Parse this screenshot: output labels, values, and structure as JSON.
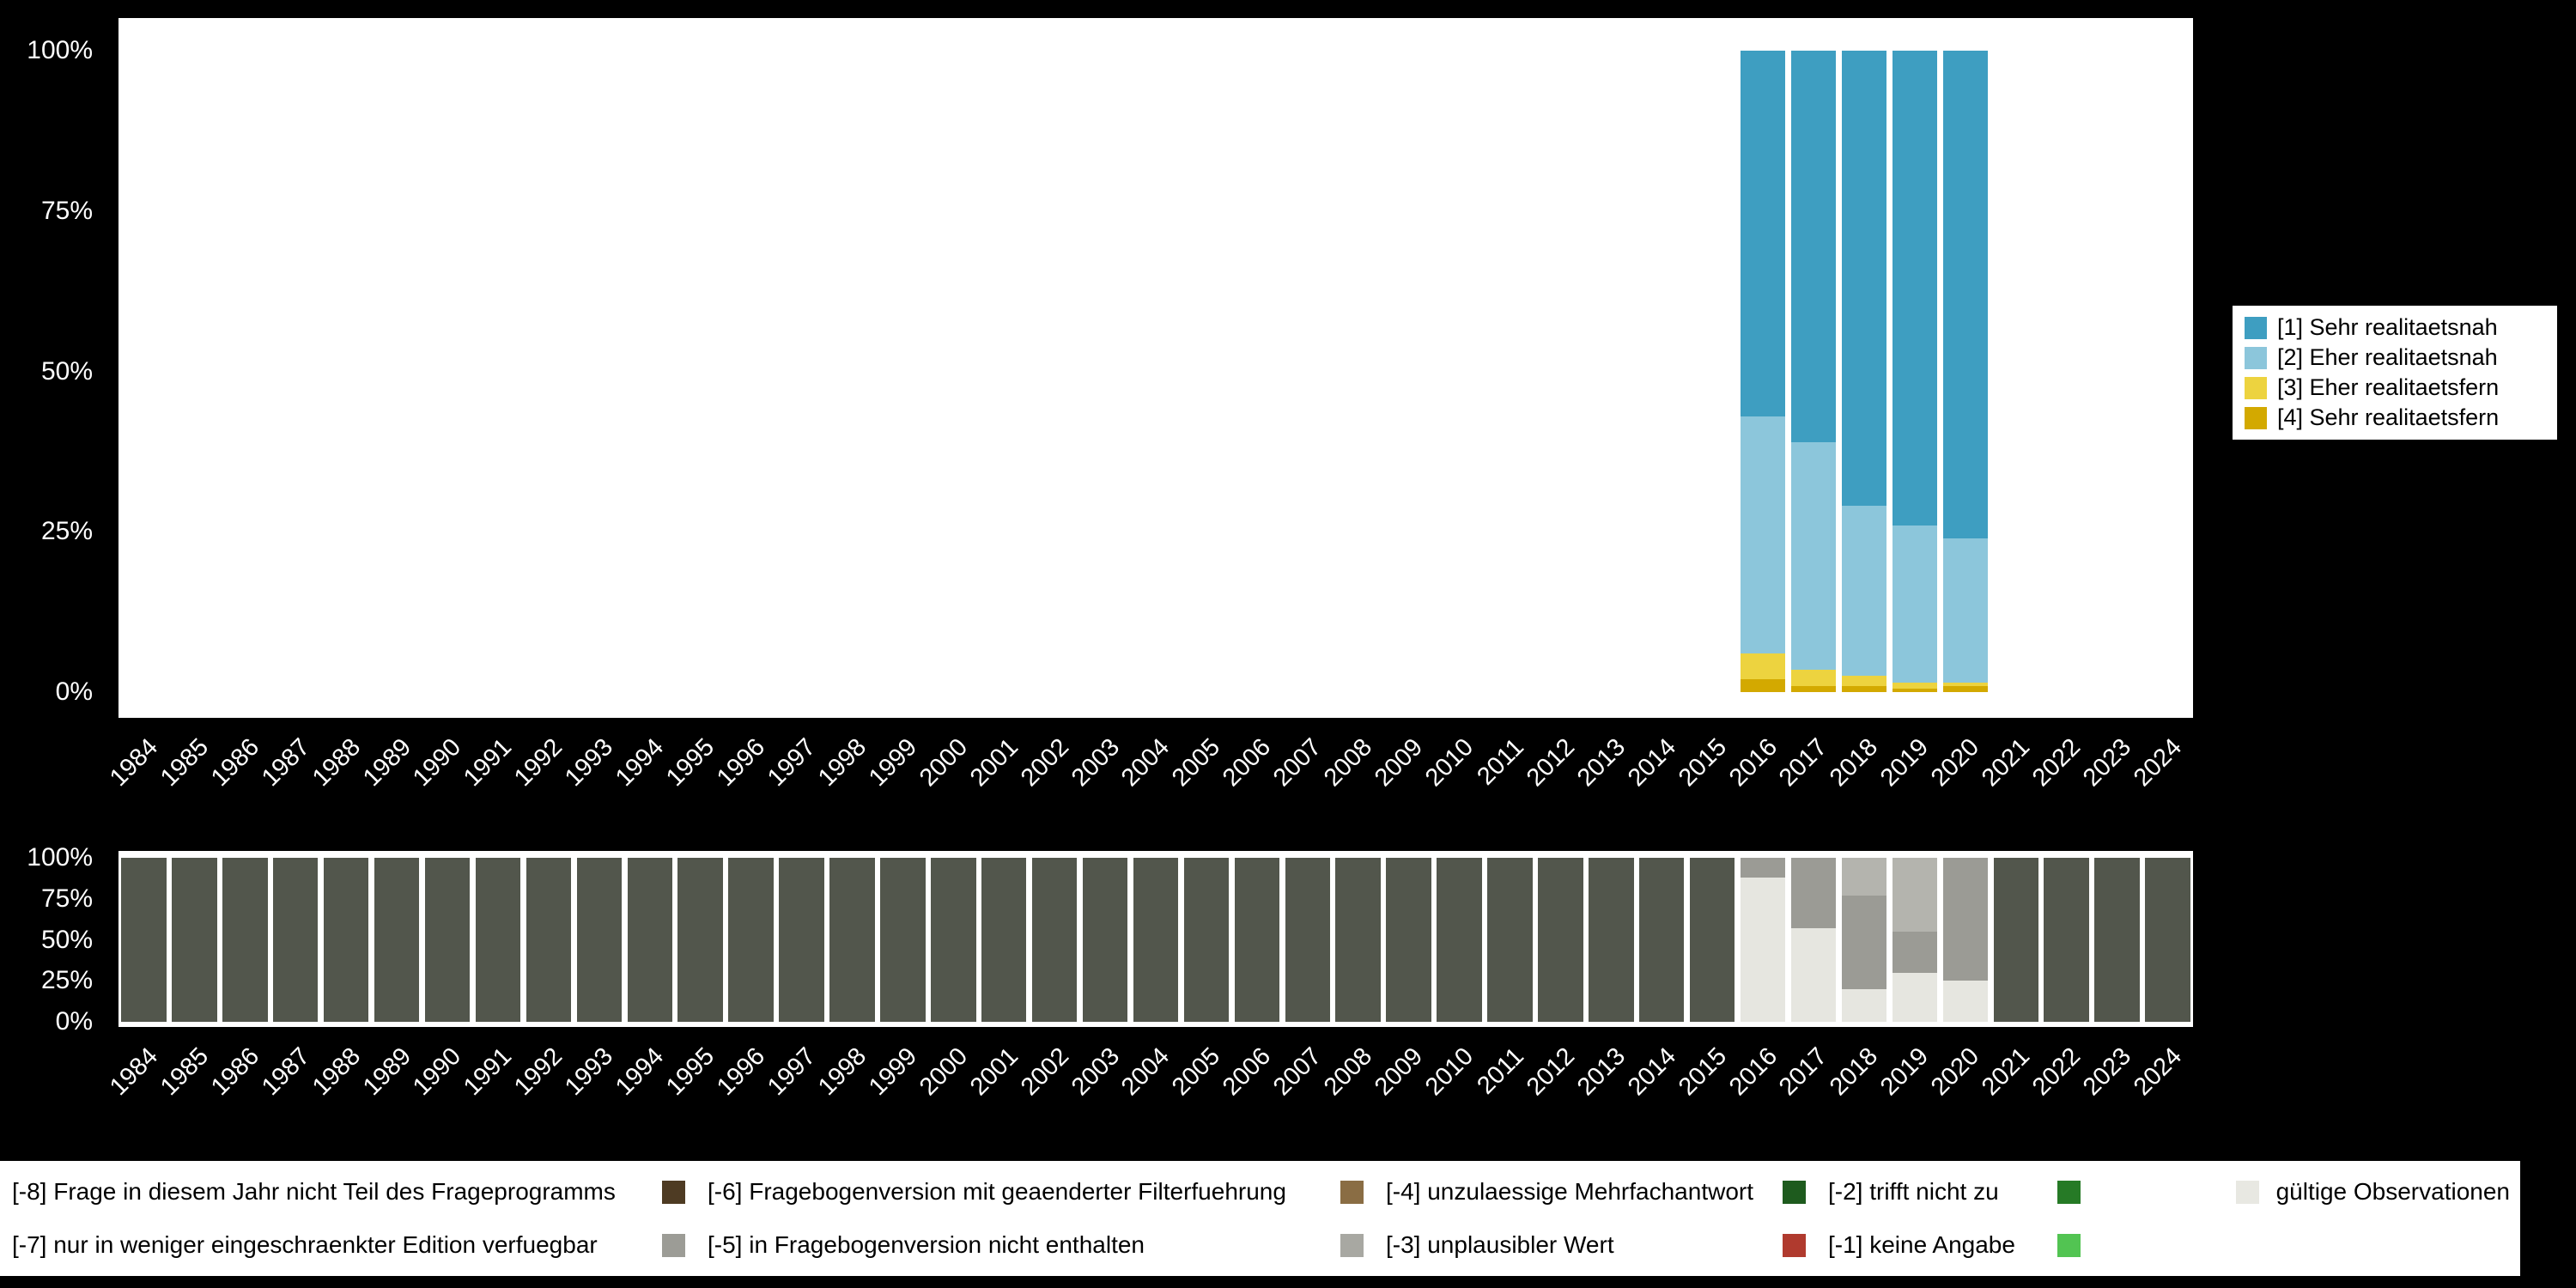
{
  "figure": {
    "background": "#000000",
    "plot_background": "#ffffff"
  },
  "top_chart": {
    "y_ticks": [
      "0%",
      "25%",
      "50%",
      "75%",
      "100%"
    ],
    "legend": [
      {
        "label": "[1] Sehr realitaetsnah",
        "color": "#3E9EC1"
      },
      {
        "label": "[2] Eher realitaetsnah",
        "color": "#8CC6DB"
      },
      {
        "label": "[3] Eher realitaetsfern",
        "color": "#EDD33F"
      },
      {
        "label": "[4] Sehr realitaetsfern",
        "color": "#D3A900"
      }
    ]
  },
  "bottom_chart": {
    "y_ticks": [
      "0%",
      "25%",
      "50%",
      "75%",
      "100%"
    ]
  },
  "missings_legend": {
    "entries": [
      {
        "label": "[-8] Frage in diesem Jahr nicht Teil des Frageprogramms",
        "color": "#4E3B23"
      },
      {
        "label": "[-6] Fragebogenversion mit geaenderter Filterfuehrung",
        "color": "#8A6D44"
      },
      {
        "label": "[-4] unzulaessige Mehrfachantwort",
        "color": "#1E5B1E"
      },
      {
        "label": "[-2] trifft nicht zu",
        "color": "#267A26"
      },
      {
        "label": "gültige Observationen",
        "color": "#E8E8E2",
        "square_first": true
      },
      {
        "label": "[-7] nur in weniger eingeschraenkter Edition verfuegbar",
        "color": "#9C9C96"
      },
      {
        "label": "[-5] in Fragebogenversion nicht enthalten",
        "color": "#A8A8A2"
      },
      {
        "label": "[-3] unplausibler Wert",
        "color": "#B03A2E"
      },
      {
        "label": "[-1] keine Angabe",
        "color": "#52C452"
      }
    ]
  },
  "chart_data": [
    {
      "type": "bar",
      "stacked": true,
      "title": "",
      "xlabel": "",
      "ylabel": "",
      "ylim": [
        0,
        100
      ],
      "y_tick_labels": [
        "0%",
        "25%",
        "50%",
        "75%",
        "100%"
      ],
      "legend_position": "right",
      "grid": false,
      "categories": [
        "1984",
        "1985",
        "1986",
        "1987",
        "1988",
        "1989",
        "1990",
        "1991",
        "1992",
        "1993",
        "1994",
        "1995",
        "1996",
        "1997",
        "1998",
        "1999",
        "2000",
        "2001",
        "2002",
        "2003",
        "2004",
        "2005",
        "2006",
        "2007",
        "2008",
        "2009",
        "2010",
        "2011",
        "2012",
        "2013",
        "2014",
        "2015",
        "2016",
        "2017",
        "2018",
        "2019",
        "2020",
        "2021",
        "2022",
        "2023",
        "2024"
      ],
      "series": [
        {
          "name": "[4] Sehr realitaetsfern",
          "color": "#D3A900",
          "values_by_year": {
            "2016": 2,
            "2017": 1,
            "2018": 1,
            "2019": 0.5,
            "2020": 1
          }
        },
        {
          "name": "[3] Eher realitaetsfern",
          "color": "#EDD33F",
          "values_by_year": {
            "2016": 4,
            "2017": 2.5,
            "2018": 1.5,
            "2019": 1,
            "2020": 0.5
          }
        },
        {
          "name": "[2] Eher realitaetsnah",
          "color": "#8CC6DB",
          "values_by_year": {
            "2016": 37,
            "2017": 35.5,
            "2018": 26.5,
            "2019": 24.5,
            "2020": 22.5
          }
        },
        {
          "name": "[1] Sehr realitaetsnah",
          "color": "#3E9EC1",
          "values_by_year": {
            "2016": 57,
            "2017": 61,
            "2018": 71,
            "2019": 74,
            "2020": 76
          }
        }
      ]
    },
    {
      "type": "bar",
      "stacked": true,
      "title": "",
      "xlabel": "",
      "ylabel": "",
      "ylim": [
        0,
        100
      ],
      "y_tick_labels": [
        "0%",
        "25%",
        "50%",
        "75%",
        "100%"
      ],
      "grid": false,
      "categories": [
        "1984",
        "1985",
        "1986",
        "1987",
        "1988",
        "1989",
        "1990",
        "1991",
        "1992",
        "1993",
        "1994",
        "1995",
        "1996",
        "1997",
        "1998",
        "1999",
        "2000",
        "2001",
        "2002",
        "2003",
        "2004",
        "2005",
        "2006",
        "2007",
        "2008",
        "2009",
        "2010",
        "2011",
        "2012",
        "2013",
        "2014",
        "2015",
        "2016",
        "2017",
        "2018",
        "2019",
        "2020",
        "2021",
        "2022",
        "2023",
        "2024"
      ],
      "series": [
        {
          "name": "gültige Observationen",
          "color": "#E6E6E0",
          "values_by_year": {
            "2016": 88,
            "2017": 57,
            "2018": 20,
            "2019": 30,
            "2020": 25
          }
        },
        {
          "name": "[-5] in Fragebogenversion nicht enthalten",
          "color": "#9B9B95",
          "values_by_year": {
            "2016": 12,
            "2017": 43,
            "2018": 57,
            "2019": 25,
            "2020": 75
          }
        },
        {
          "name": "[-7] nur in weniger eingeschraenkter Edition verfuegbar",
          "color": "#B4B4AE",
          "values_by_year": {
            "2018": 23,
            "2019": 45
          }
        },
        {
          "name": "[-8] Frage in diesem Jahr nicht Teil des Frageprogramms",
          "color": "#52564C",
          "value": 100,
          "years": [
            "1984",
            "1985",
            "1986",
            "1987",
            "1988",
            "1989",
            "1990",
            "1991",
            "1992",
            "1993",
            "1994",
            "1995",
            "1996",
            "1997",
            "1998",
            "1999",
            "2000",
            "2001",
            "2002",
            "2003",
            "2004",
            "2005",
            "2006",
            "2007",
            "2008",
            "2009",
            "2010",
            "2011",
            "2012",
            "2013",
            "2014",
            "2015",
            "2021",
            "2022",
            "2023",
            "2024"
          ]
        }
      ]
    }
  ]
}
